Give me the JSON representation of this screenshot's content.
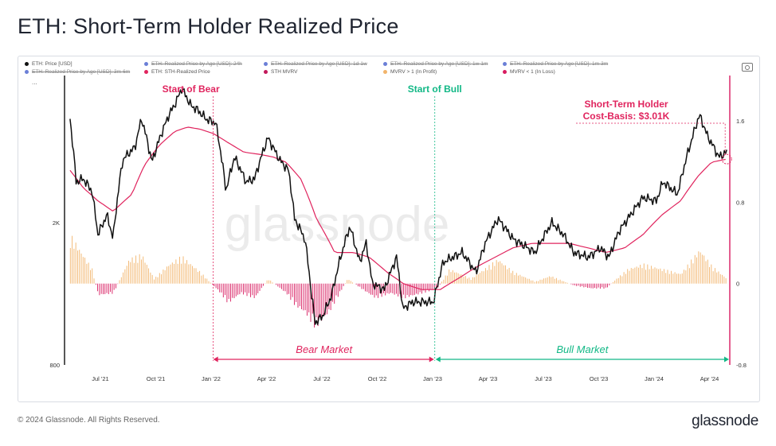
{
  "page": {
    "title": "ETH: Short-Term Holder Realized Price",
    "footer_copyright": "© 2024 Glassnode. All Rights Reserved.",
    "footer_logo": "glassnode",
    "watermark": "glassnode"
  },
  "legend": [
    {
      "label": "ETH: Price [USD]",
      "color": "#111111",
      "active": true
    },
    {
      "label": "ETH: Realized Price by Age [USD]: 24h",
      "color": "#6b7fd7",
      "active": false
    },
    {
      "label": "ETH: Realized Price by Age [USD]: 1d-1w",
      "color": "#6b7fd7",
      "active": false
    },
    {
      "label": "ETH: Realized Price by Age [USD]: 1w-1m",
      "color": "#6b7fd7",
      "active": false
    },
    {
      "label": "ETH: Realized Price by Age [USD]: 1m-3m",
      "color": "#6b7fd7",
      "active": false
    },
    {
      "label": "",
      "color": "#ffffff",
      "active": true
    },
    {
      "label": "ETH: Realized Price by Age [USD]: 3m-6m",
      "color": "#6b7fd7",
      "active": false
    },
    {
      "label": "ETH: STH-Realized Price",
      "color": "#e0245e",
      "active": true
    },
    {
      "label": "STH MVRV",
      "color": "#c2185b",
      "active": true
    },
    {
      "label": "MVRV > 1 (In Profit)",
      "color": "#f2b46b",
      "active": true
    },
    {
      "label": "MVRV < 1 (In Loss)",
      "color": "#d81b60",
      "active": true
    }
  ],
  "legend_more": "...",
  "annotations": {
    "start_bear": "Start of Bear",
    "start_bull": "Start of Bull",
    "cost_basis_line1": "Short-Term Holder",
    "cost_basis_line2": "Cost-Basis: $3.01K",
    "bear_market": "Bear Market",
    "bull_market": "Bull Market"
  },
  "chart_data": {
    "type": "line",
    "x_ticks": [
      "Jul '21",
      "Oct '21",
      "Jan '22",
      "Apr '22",
      "Jul '22",
      "Oct '22",
      "Jan '23",
      "Apr '23",
      "Jul '23",
      "Oct '23",
      "Jan '24",
      "Apr '24"
    ],
    "y_left_ticks": [
      "2K",
      "800"
    ],
    "y_right_ticks": [
      "1.6",
      "0.8",
      "0",
      "-0.8"
    ],
    "y_left_scale": "log",
    "y_left_range": [
      800,
      5000
    ],
    "y_right_range": [
      -0.8,
      2.0
    ],
    "x_range": [
      "2021-05-01",
      "2024-05-01"
    ],
    "grid": false,
    "legend_position": "top",
    "series": [
      {
        "name": "ETH: Price [USD]",
        "color": "#111111",
        "dates": [
          "2021-05-10",
          "2021-05-20",
          "2021-06-01",
          "2021-06-15",
          "2021-06-25",
          "2021-07-10",
          "2021-07-20",
          "2021-08-05",
          "2021-08-25",
          "2021-09-05",
          "2021-09-22",
          "2021-10-05",
          "2021-10-20",
          "2021-11-01",
          "2021-11-10",
          "2021-11-25",
          "2021-12-05",
          "2021-12-20",
          "2022-01-05",
          "2022-01-22",
          "2022-02-05",
          "2022-02-24",
          "2022-03-10",
          "2022-04-01",
          "2022-04-20",
          "2022-05-05",
          "2022-05-15",
          "2022-06-01",
          "2022-06-12",
          "2022-06-18",
          "2022-07-01",
          "2022-07-15",
          "2022-08-01",
          "2022-08-14",
          "2022-08-30",
          "2022-09-10",
          "2022-09-20",
          "2022-10-10",
          "2022-10-30",
          "2022-11-09",
          "2022-11-25",
          "2022-12-15",
          "2022-12-30",
          "2023-01-15",
          "2023-02-15",
          "2023-03-10",
          "2023-03-25",
          "2023-04-15",
          "2023-05-10",
          "2023-06-15",
          "2023-07-13",
          "2023-08-01",
          "2023-08-18",
          "2023-09-11",
          "2023-10-01",
          "2023-10-15",
          "2023-11-01",
          "2023-11-15",
          "2023-12-10",
          "2024-01-01",
          "2024-01-12",
          "2024-02-05",
          "2024-02-28",
          "2024-03-12",
          "2024-03-25",
          "2024-04-13",
          "2024-04-26"
        ],
        "values": [
          3900,
          2600,
          2650,
          2450,
          1850,
          2100,
          1800,
          3000,
          3250,
          3900,
          2950,
          3450,
          4000,
          4350,
          4750,
          4250,
          4150,
          3900,
          3800,
          2450,
          3050,
          2600,
          2650,
          3450,
          3000,
          2800,
          2050,
          1800,
          1250,
          1050,
          1100,
          1250,
          1650,
          1950,
          1550,
          1750,
          1350,
          1300,
          1600,
          1150,
          1200,
          1200,
          1200,
          1550,
          1650,
          1450,
          1750,
          2050,
          1800,
          1650,
          2000,
          1850,
          1650,
          1600,
          1700,
          1600,
          1900,
          2050,
          2350,
          2300,
          2600,
          2400,
          3400,
          4000,
          3500,
          3050,
          3150
        ]
      },
      {
        "name": "ETH: STH-Realized Price",
        "color": "#e0245e",
        "dates": [
          "2021-05-10",
          "2021-06-01",
          "2021-06-25",
          "2021-07-20",
          "2021-08-20",
          "2021-09-10",
          "2021-10-05",
          "2021-10-30",
          "2021-11-20",
          "2021-12-10",
          "2022-01-01",
          "2022-01-25",
          "2022-02-20",
          "2022-03-20",
          "2022-04-10",
          "2022-05-01",
          "2022-05-25",
          "2022-06-20",
          "2022-07-20",
          "2022-08-20",
          "2022-09-15",
          "2022-10-15",
          "2022-11-10",
          "2022-12-10",
          "2023-01-10",
          "2023-02-10",
          "2023-03-10",
          "2023-04-10",
          "2023-05-10",
          "2023-06-10",
          "2023-07-10",
          "2023-08-10",
          "2023-09-10",
          "2023-10-10",
          "2023-11-10",
          "2023-12-10",
          "2024-01-10",
          "2024-02-10",
          "2024-03-10",
          "2024-04-01",
          "2024-04-26"
        ],
        "values": [
          2800,
          2500,
          2300,
          2150,
          2400,
          2900,
          3300,
          3600,
          3700,
          3650,
          3550,
          3350,
          3150,
          3100,
          3050,
          2950,
          2650,
          2050,
          1650,
          1650,
          1600,
          1450,
          1350,
          1300,
          1300,
          1400,
          1500,
          1600,
          1700,
          1750,
          1750,
          1750,
          1700,
          1650,
          1700,
          1850,
          2100,
          2300,
          2700,
          2950,
          3010
        ]
      },
      {
        "name": "STH MVRV",
        "color": "#d81b60",
        "dates": [
          "2021-05-10",
          "2021-06-15",
          "2021-06-25",
          "2021-07-20",
          "2021-08-15",
          "2021-09-05",
          "2021-09-25",
          "2021-10-20",
          "2021-11-10",
          "2021-12-10",
          "2022-01-10",
          "2022-01-25",
          "2022-02-15",
          "2022-03-10",
          "2022-04-01",
          "2022-05-01",
          "2022-05-15",
          "2022-06-01",
          "2022-06-18",
          "2022-07-10",
          "2022-08-10",
          "2022-09-01",
          "2022-09-25",
          "2022-10-20",
          "2022-11-10",
          "2022-12-10",
          "2023-01-05",
          "2023-01-25",
          "2023-03-01",
          "2023-04-15",
          "2023-05-10",
          "2023-06-15",
          "2023-07-10",
          "2023-08-18",
          "2023-09-15",
          "2023-10-10",
          "2023-10-25",
          "2023-11-15",
          "2023-12-10",
          "2024-01-10",
          "2024-02-10",
          "2024-03-12",
          "2024-04-01",
          "2024-04-26"
        ],
        "values": [
          0.5,
          0.15,
          -0.12,
          -0.1,
          0.25,
          0.3,
          0.05,
          0.2,
          0.28,
          0.12,
          -0.08,
          -0.2,
          -0.1,
          -0.15,
          0.05,
          -0.1,
          -0.22,
          -0.3,
          -0.45,
          -0.3,
          0.05,
          -0.05,
          -0.15,
          -0.1,
          -0.15,
          -0.1,
          -0.05,
          0.15,
          0.05,
          0.25,
          0.12,
          0.02,
          0.08,
          -0.02,
          -0.05,
          -0.05,
          0.04,
          0.15,
          0.2,
          0.15,
          0.1,
          0.35,
          0.18,
          0.05
        ]
      }
    ]
  }
}
